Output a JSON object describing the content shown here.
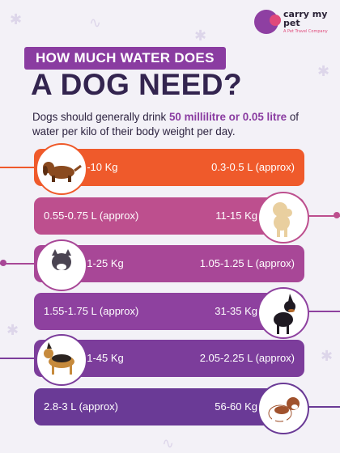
{
  "brand": {
    "name": "carry my pet",
    "tagline": "A Pet Travel Company"
  },
  "title": {
    "line1": "HOW MUCH WATER DOES",
    "line2": "A DOG NEED?"
  },
  "intro": {
    "before": "Dogs should generally drink ",
    "highlight": "50 millilitre or 0.05 litre",
    "after": " of water per kilo of their body weight per day."
  },
  "rows": [
    {
      "weight": "6-10 Kg",
      "water": "0.3-0.5 L (approx)",
      "dog": "dachshund-icon",
      "color": "#ef5a2b"
    },
    {
      "weight": "11-15 Kg",
      "water": "0.55-0.75 L (approx)",
      "dog": "poodle-icon",
      "color": "#bd4f8e"
    },
    {
      "weight": "21-25 Kg",
      "water": "1.05-1.25 L (approx)",
      "dog": "pitbull-icon",
      "color": "#a84797"
    },
    {
      "weight": "31-35 Kg",
      "water": "1.55-1.75 L (approx)",
      "dog": "doberman-icon",
      "color": "#8e419f"
    },
    {
      "weight": "41-45 Kg",
      "water": "2.05-2.25 L (approx)",
      "dog": "german-shepherd-icon",
      "color": "#7c3d9b"
    },
    {
      "weight": "56-60 Kg",
      "water": "2.8-3 L (approx)",
      "dog": "st-bernard-icon",
      "color": "#6a3a96"
    }
  ]
}
